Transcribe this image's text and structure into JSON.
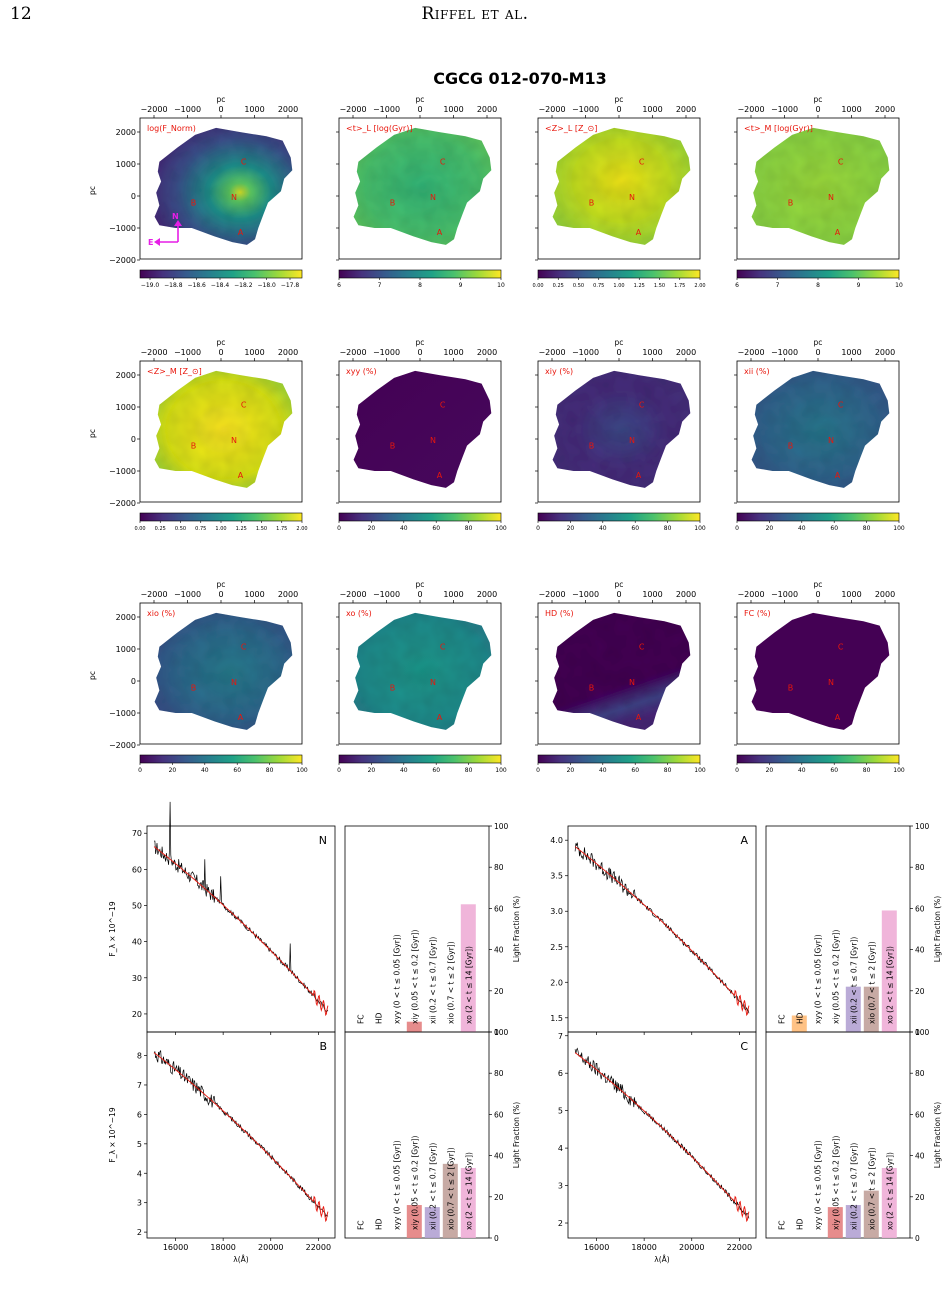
{
  "page": {
    "number": "12",
    "running_head": "Riffel et al."
  },
  "figure": {
    "title": "CGCG 012-070-M13",
    "axis_unit": "pc",
    "x_ticks": [
      "−2000",
      "−1000",
      "0",
      "1000",
      "2000"
    ],
    "y_ticks": [
      "2000",
      "1000",
      "0",
      "−1000",
      "−2000"
    ],
    "region_labels": [
      "C",
      "B",
      "N",
      "A"
    ],
    "compass": {
      "north": "N",
      "east": "E"
    },
    "maps": [
      {
        "label": "log(F_Norm)",
        "colorbar_ticks": [
          "−19.0",
          "−18.8",
          "−18.6",
          "−18.4",
          "−18.2",
          "−18.0",
          "−17.8"
        ],
        "fill": "flux"
      },
      {
        "label": "<t>_L [log(Gyr)]",
        "colorbar_ticks": [
          "6",
          "7",
          "8",
          "9",
          "10"
        ],
        "fill": "tL"
      },
      {
        "label": "<Z>_L [Z_⊙]",
        "colorbar_ticks": [
          "0.00",
          "0.25",
          "0.50",
          "0.75",
          "1.00",
          "1.25",
          "1.50",
          "1.75",
          "2.00"
        ],
        "fill": "zL"
      },
      {
        "label": "<t>_M [log(Gyr)]",
        "colorbar_ticks": [
          "6",
          "7",
          "8",
          "9",
          "10"
        ],
        "fill": "tM"
      },
      {
        "label": "<Z>_M [Z_⊙]",
        "colorbar_ticks": [
          "0.00",
          "0.25",
          "0.50",
          "0.75",
          "1.00",
          "1.25",
          "1.50",
          "1.75",
          "2.00"
        ],
        "fill": "zM"
      },
      {
        "label": "xyy (%)",
        "colorbar_ticks": [
          "0",
          "20",
          "40",
          "60",
          "80",
          "100"
        ],
        "fill": "xyy"
      },
      {
        "label": "xiy (%)",
        "colorbar_ticks": [
          "0",
          "20",
          "40",
          "60",
          "80",
          "100"
        ],
        "fill": "xiy"
      },
      {
        "label": "xii (%)",
        "colorbar_ticks": [
          "0",
          "20",
          "40",
          "60",
          "80",
          "100"
        ],
        "fill": "xii"
      },
      {
        "label": "xio (%)",
        "colorbar_ticks": [
          "0",
          "20",
          "40",
          "60",
          "80",
          "100"
        ],
        "fill": "xio"
      },
      {
        "label": "xo (%)",
        "colorbar_ticks": [
          "0",
          "20",
          "40",
          "60",
          "80",
          "100"
        ],
        "fill": "xo"
      },
      {
        "label": "HD (%)",
        "colorbar_ticks": [
          "0",
          "20",
          "40",
          "60",
          "80",
          "100"
        ],
        "fill": "hd"
      },
      {
        "label": "FC (%)",
        "colorbar_ticks": [
          "0",
          "20",
          "40",
          "60",
          "80",
          "100"
        ],
        "fill": "fc"
      }
    ],
    "spectra": {
      "xlabel": "λ(Å)",
      "ylabel": "F_λ × 10^−19",
      "x_ticks": [
        "16000",
        "18000",
        "20000",
        "22000"
      ],
      "panels": [
        {
          "label": "N",
          "y_ticks": [
            "20",
            "30",
            "40",
            "50",
            "60",
            "70"
          ],
          "yrange": [
            15,
            72
          ]
        },
        {
          "label": "A",
          "y_ticks": [
            "1.5",
            "2.0",
            "2.5",
            "3.0",
            "3.5",
            "4.0"
          ],
          "yrange": [
            1.3,
            4.2
          ]
        },
        {
          "label": "B",
          "y_ticks": [
            "2",
            "3",
            "4",
            "5",
            "6",
            "7",
            "8"
          ],
          "yrange": [
            1.8,
            8.8
          ]
        },
        {
          "label": "C",
          "y_ticks": [
            "2",
            "3",
            "4",
            "5",
            "6",
            "7"
          ],
          "yrange": [
            1.6,
            7.1
          ]
        }
      ]
    },
    "bars": {
      "ylabel": "Light Fraction (%)",
      "y_ticks": [
        "0",
        "20",
        "40",
        "60",
        "80",
        "100"
      ],
      "categories": [
        "FC",
        "HD",
        "xyy (0 < t ≤ 0.05 [Gyr])",
        "xiy (0.05 < t ≤ 0.2 [Gyr])",
        "xii (0.2 < t ≤ 0.7 [Gyr])",
        "xio (0.7 < t ≤ 2 [Gyr])",
        "xo (2 < t ≤ 14 [Gyr])"
      ],
      "colors": [
        "#1f77b4",
        "#ffbb78",
        "#d62728",
        "#e37f7f",
        "#b3a2d3",
        "#c1a19a",
        "#eeadd6"
      ],
      "panels": [
        {
          "region": "N",
          "values": [
            0,
            0,
            0,
            5,
            0,
            0,
            62
          ]
        },
        {
          "region": "A",
          "values": [
            0,
            8,
            0,
            0,
            22,
            22,
            59
          ]
        },
        {
          "region": "B",
          "values": [
            0,
            0,
            0,
            16,
            15,
            36,
            34
          ]
        },
        {
          "region": "C",
          "values": [
            0,
            0,
            0,
            15,
            16,
            23,
            34
          ]
        }
      ]
    }
  }
}
